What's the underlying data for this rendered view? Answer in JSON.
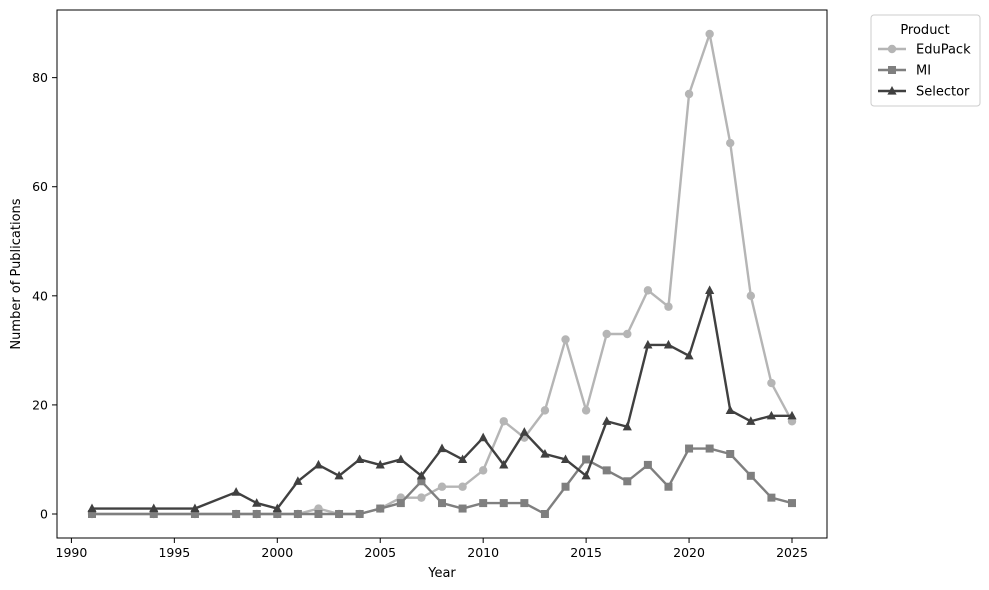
{
  "chart_data": {
    "type": "line",
    "xlabel": "Year",
    "ylabel": "Number of Publications",
    "xlim": [
      1989.3,
      2026.7
    ],
    "ylim": [
      -4.4,
      92.4
    ],
    "xticks": [
      1990,
      1995,
      2000,
      2005,
      2010,
      2015,
      2020,
      2025
    ],
    "yticks": [
      0,
      20,
      40,
      60,
      80
    ],
    "grid": false,
    "legend": {
      "title": "Product",
      "placement": "outside-top-right"
    },
    "series": [
      {
        "name": "EduPack",
        "color": "#b5b5b5",
        "marker": "circle",
        "x": [
          1991,
          1994,
          1996,
          1998,
          1999,
          2000,
          2001,
          2002,
          2003,
          2004,
          2005,
          2006,
          2007,
          2008,
          2009,
          2010,
          2011,
          2012,
          2013,
          2014,
          2015,
          2016,
          2017,
          2018,
          2019,
          2020,
          2021,
          2022,
          2023,
          2024,
          2025
        ],
        "y": [
          0,
          0,
          0,
          0,
          0,
          0,
          0,
          1,
          0,
          0,
          1,
          3,
          3,
          5,
          5,
          8,
          17,
          14,
          19,
          32,
          19,
          33,
          33,
          41,
          38,
          77,
          88,
          68,
          40,
          24,
          17
        ]
      },
      {
        "name": "MI",
        "color": "#7f7f7f",
        "marker": "square",
        "x": [
          1991,
          1994,
          1996,
          1998,
          1999,
          2000,
          2001,
          2002,
          2003,
          2004,
          2005,
          2006,
          2007,
          2008,
          2009,
          2010,
          2011,
          2012,
          2013,
          2014,
          2015,
          2016,
          2017,
          2018,
          2019,
          2020,
          2021,
          2022,
          2023,
          2024,
          2025
        ],
        "y": [
          0,
          0,
          0,
          0,
          0,
          0,
          0,
          0,
          0,
          0,
          1,
          2,
          6,
          2,
          1,
          2,
          2,
          2,
          0,
          5,
          10,
          8,
          6,
          9,
          5,
          12,
          12,
          11,
          7,
          3,
          2
        ]
      },
      {
        "name": "Selector",
        "color": "#404040",
        "marker": "triangle",
        "x": [
          1991,
          1994,
          1996,
          1998,
          1999,
          2000,
          2001,
          2002,
          2003,
          2004,
          2005,
          2006,
          2007,
          2008,
          2009,
          2010,
          2011,
          2012,
          2013,
          2014,
          2015,
          2016,
          2017,
          2018,
          2019,
          2020,
          2021,
          2022,
          2023,
          2024,
          2025
        ],
        "y": [
          1,
          1,
          1,
          4,
          2,
          1,
          6,
          9,
          7,
          10,
          9,
          10,
          7,
          12,
          10,
          14,
          9,
          15,
          11,
          10,
          7,
          17,
          16,
          31,
          31,
          29,
          41,
          19,
          17,
          18,
          18
        ]
      }
    ]
  }
}
